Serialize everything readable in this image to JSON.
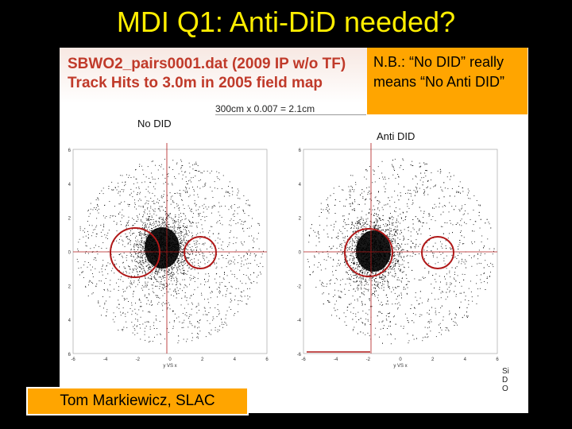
{
  "slide_title": "MDI Q1: Anti-DiD needed?",
  "figure": {
    "header_line1": "SBWO2_pairs0001.dat (2009 IP w/o TF)",
    "header_line2": "Track Hits to 3.0m in 2005 field map",
    "scale_note": "300cm x 0.007 = 2.1cm",
    "left_plot": {
      "caption": "No DID",
      "y_ticks": [
        "6",
        "4",
        "2",
        "0",
        "-2",
        "-4",
        "-6"
      ],
      "x_ticks": [
        "-6",
        "-4",
        "-2",
        "0",
        "2",
        "4",
        "6"
      ],
      "x_axis_label": "y VS x"
    },
    "right_plot": {
      "caption": "Anti DID",
      "y_ticks": [
        "6",
        "4",
        "2",
        "0",
        "-2",
        "-4",
        "-6"
      ],
      "x_ticks": [
        "-6",
        "-4",
        "-2",
        "0",
        "2",
        "4",
        "6"
      ],
      "x_axis_label": "y VS x"
    },
    "side_fragment": "SiDO"
  },
  "note_box": {
    "text_line1": "N.B.: “No DID” really",
    "text_line2": "means “No Anti DID”"
  },
  "author_box": "Tom Markiewicz, SLAC",
  "colors": {
    "background": "#000000",
    "title": "#ffee00",
    "box_fill": "#ffa500",
    "header_text": "#c03a2a",
    "circle": "#b01818",
    "scatter": "#000000"
  }
}
